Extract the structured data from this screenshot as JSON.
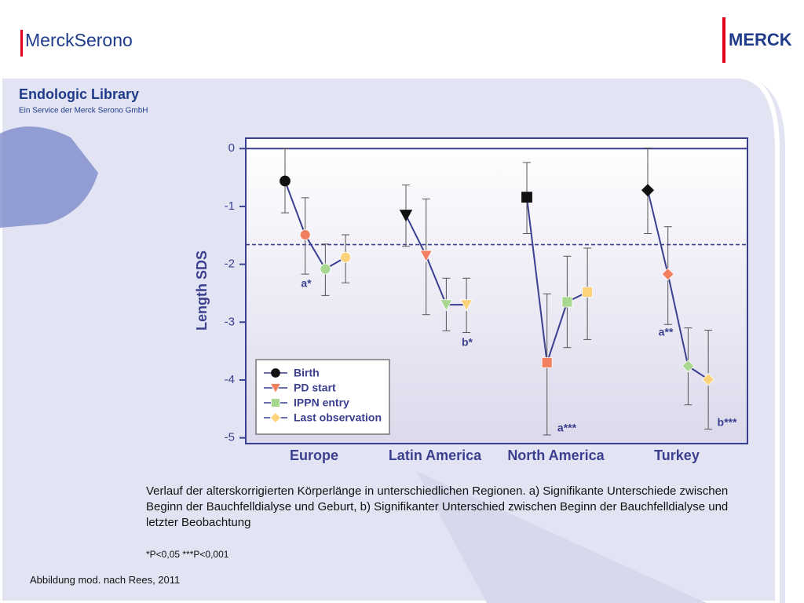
{
  "logos": {
    "left": "MerckSerono",
    "right": "MERCK"
  },
  "header": {
    "title": "Endologic Library",
    "subtitle": "Ein Service der Merck Serono GmbH"
  },
  "chart_data": {
    "type": "dot-errorbar",
    "y_label": "Length SDS",
    "categories": [
      "Europe",
      "Latin America",
      "North America",
      "Turkey"
    ],
    "markers": [
      "circle",
      "triangle",
      "square",
      "diamond"
    ],
    "line_color": "#3a3f8f",
    "series": [
      {
        "name": "Birth",
        "color": "#111111",
        "values": [
          -0.56,
          -1.15,
          -0.84,
          -0.72
        ],
        "lower": [
          -1.11,
          -1.69,
          -1.47,
          -1.47
        ],
        "upper": [
          0,
          -0.63,
          -0.24,
          0.01
        ]
      },
      {
        "name": "PD start",
        "color": "#f08060",
        "values": [
          -1.49,
          -1.85,
          -3.7,
          -2.17
        ],
        "lower": [
          -2.17,
          -2.87,
          -4.95,
          -3.04
        ],
        "upper": [
          -0.85,
          -0.87,
          -2.51,
          -1.35
        ]
      },
      {
        "name": "IPPN entry",
        "color": "#a8d890",
        "values": [
          -2.08,
          -2.7,
          -2.65,
          -3.76
        ],
        "lower": [
          -2.54,
          -3.15,
          -3.44,
          -4.43
        ],
        "upper": [
          -1.65,
          -2.24,
          -1.86,
          -3.1
        ]
      },
      {
        "name": "Last observation",
        "color": "#fcd27a",
        "values": [
          -1.88,
          -2.7,
          -2.48,
          -3.99
        ],
        "lower": [
          -2.32,
          -3.18,
          -3.3,
          -4.85
        ],
        "upper": [
          -1.49,
          -2.24,
          -1.72,
          -3.14
        ]
      }
    ],
    "reference_line": -1.66,
    "ylim": [
      -5.1,
      0.18
    ],
    "yticks": [
      0,
      -1,
      -2,
      -3,
      -4,
      -5
    ],
    "grid": false,
    "legend": "lower-left",
    "annotations": [
      {
        "text": "a*",
        "category": 0
      },
      {
        "text": "b*",
        "category": 1
      },
      {
        "text": "a***",
        "category": 2
      },
      {
        "text": "a**",
        "category": 3
      },
      {
        "text": "b***",
        "category": 3
      }
    ]
  },
  "caption": {
    "text": "Verlauf der alterskorrigierten Körperlänge in unterschiedlichen Regionen. a) Signifikante Unterschiede zwischen Beginn der Bauchfelldialyse und Geburt, b) Signifikanter Unterschied zwischen Beginn der Bauchfelldialyse und letzter Beobachtung",
    "footnote": "*P<0,05 ***P<0,001",
    "source": "Abbildung mod. nach Rees, 2011"
  }
}
